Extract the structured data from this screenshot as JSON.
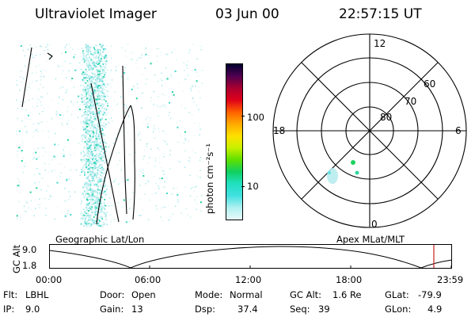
{
  "header": {
    "instrument": "Ultraviolet Imager",
    "date": "03 Jun 00",
    "time": "22:57:15 UT"
  },
  "colorbar": {
    "unit_label": "photon cm⁻²s⁻¹",
    "ticks": [
      "100",
      "10"
    ],
    "scale": "log",
    "colors": [
      "#000030",
      "#500050",
      "#aa0030",
      "#e0001a",
      "#ff6000",
      "#ffaa00",
      "#ffe000",
      "#c8f000",
      "#60e000",
      "#10d060",
      "#20e0c0",
      "#40e0e0",
      "#b0f0f0",
      "#e8fafa"
    ]
  },
  "left_panel": {
    "title": "Geographic Lat/Lon"
  },
  "polar_panel": {
    "title": "Apex MLat/MLT",
    "mlt_labels": {
      "top": "12",
      "bottom": "0",
      "left": "18",
      "right": "6"
    },
    "lat_labels": [
      "60",
      "70",
      "80"
    ]
  },
  "altitude_plot": {
    "ylabel": "GC Alt",
    "yticks": [
      "9.0",
      "1.8"
    ],
    "xticks": [
      "00:00",
      "06:00",
      "12:00",
      "18:00",
      "23:59"
    ],
    "marker_color": "#cc2020"
  },
  "info": {
    "row1": [
      {
        "key": "Flt:",
        "value": "LBHL"
      },
      {
        "key": "Door:",
        "value": "Open"
      },
      {
        "key": "Mode:",
        "value": "Normal"
      },
      {
        "key": "GC Alt:",
        "value": "1.6 Re"
      },
      {
        "key": "GLat:",
        "value": "-79.9"
      }
    ],
    "row2": [
      {
        "key": "IP:",
        "value": "9.0"
      },
      {
        "key": "Gain:",
        "value": "13"
      },
      {
        "key": "Dsp:",
        "value": "37.4"
      },
      {
        "key": "Seq:",
        "value": "39"
      },
      {
        "key": "GLon:",
        "value": "4.9"
      }
    ]
  }
}
